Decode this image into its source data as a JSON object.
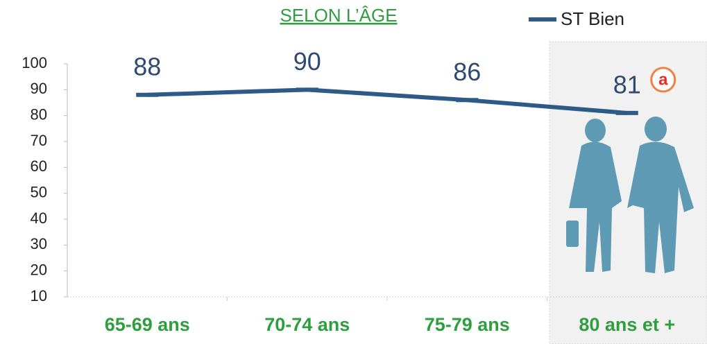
{
  "chart_data": {
    "type": "line",
    "title": "SELON L’ÂGE",
    "categories": [
      "65-69 ans",
      "70-74 ans",
      "75-79 ans",
      "80 ans et +"
    ],
    "series": [
      {
        "name": "ST Bien",
        "color": "#2e5a88",
        "values": [
          88,
          90,
          86,
          81
        ]
      }
    ],
    "ylim": [
      10,
      100
    ],
    "yticks": [
      10,
      20,
      30,
      40,
      50,
      60,
      70,
      80,
      90,
      100
    ],
    "annotation": "a",
    "legend": "top-right"
  }
}
